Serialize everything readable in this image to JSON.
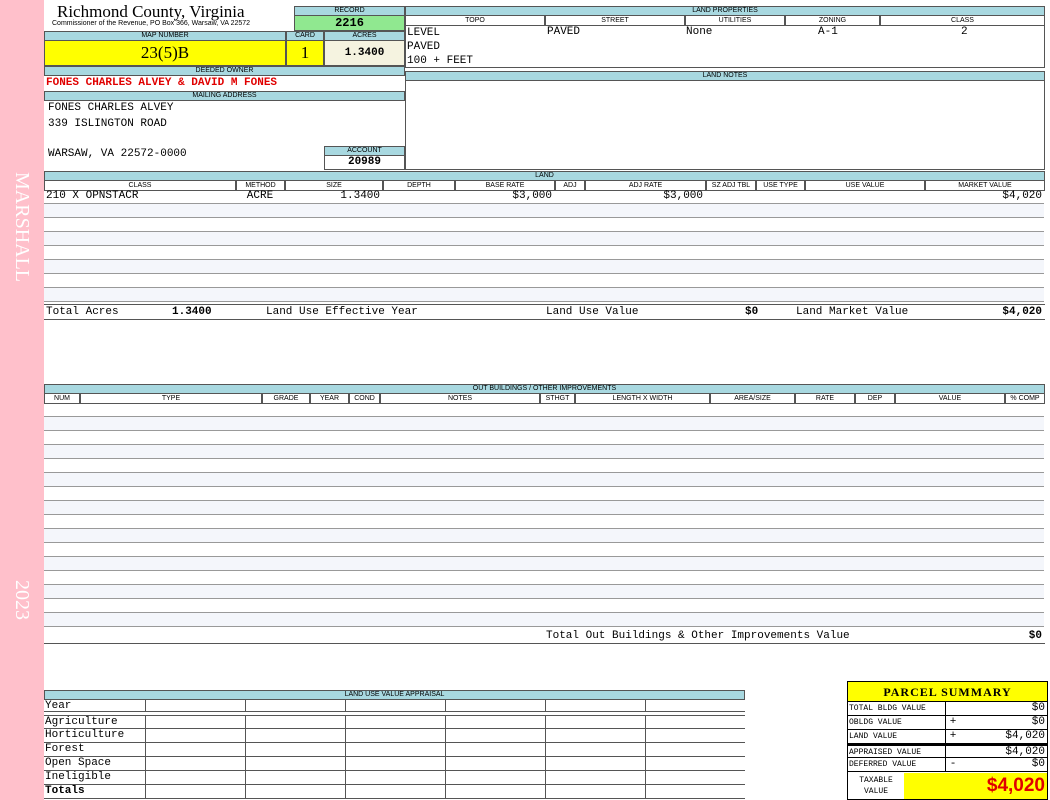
{
  "side": {
    "top": "MARSHALL",
    "bottom": "2023"
  },
  "header": {
    "county": "Richmond County, Virginia",
    "address": "Commissioner of the Revenue, PO Box 366, Warsaw, VA 22572",
    "record_label": "RECORD",
    "record": "2216",
    "map_label": "MAP NUMBER",
    "map": "23(5)B",
    "card_label": "CARD",
    "card": "1",
    "acres_label": "ACRES",
    "acres": "1.3400"
  },
  "owner": {
    "label": "DEEDED OWNER",
    "name": "FONES CHARLES ALVEY & DAVID M FONES",
    "mail_label": "MAILING ADDRESS",
    "lines": [
      "FONES CHARLES ALVEY",
      "339 ISLINGTON ROAD",
      "WARSAW, VA 22572-0000"
    ],
    "account_label": "ACCOUNT",
    "account": "20989"
  },
  "land_props": {
    "label": "LAND PROPERTIES",
    "cols": [
      "TOPO",
      "STREET",
      "UTILITIES",
      "ZONING",
      "CLASS"
    ],
    "topo": [
      "LEVEL",
      "PAVED",
      "100 + FEET"
    ],
    "street": "PAVED",
    "utilities": "None",
    "zoning": "A-1",
    "class": "2"
  },
  "land_notes": {
    "label": "LAND NOTES"
  },
  "land": {
    "label": "LAND",
    "cols": [
      "CLASS",
      "METHOD",
      "SIZE",
      "DEPTH",
      "BASE RATE",
      "ADJ",
      "ADJ RATE",
      "SZ ADJ TBL",
      "USE TYPE",
      "USE VALUE",
      "MARKET VALUE"
    ],
    "rows": [
      [
        "210 X OPNSTACR",
        "ACRE",
        "1.3400",
        "",
        "$3,000",
        "",
        "$3,000",
        "",
        "",
        "",
        "$4,020"
      ]
    ],
    "totals": {
      "acres_label": "Total Acres",
      "acres": "1.3400",
      "eff_label": "Land Use Effective Year",
      "use_label": "Land Use Value",
      "use": "$0",
      "market_label": "Land Market Value",
      "market": "$4,020"
    }
  },
  "outbuildings": {
    "label": "OUT BUILDINGS / OTHER IMPROVEMENTS",
    "cols": [
      "NUM",
      "TYPE",
      "GRADE",
      "YEAR",
      "COND",
      "NOTES",
      "STHGT",
      "LENGTH X WIDTH",
      "AREA/SIZE",
      "RATE",
      "DEP",
      "VALUE",
      "% COMP"
    ],
    "total_label": "Total Out Buildings & Other Improvements Value",
    "total": "$0"
  },
  "land_use": {
    "label": "LAND USE VALUE APPRAISAL",
    "rows": [
      "Year",
      "Agriculture",
      "Horticulture",
      "Forest",
      "Open Space",
      "Ineligible",
      "Totals"
    ]
  },
  "summary": {
    "title": "PARCEL SUMMARY",
    "rows": [
      {
        "label": "TOTAL BLDG VALUE",
        "op": "",
        "value": "$0"
      },
      {
        "label": "OBLDG VALUE",
        "op": "+",
        "value": "$0"
      },
      {
        "label": "LAND VALUE",
        "op": "+",
        "value": "$4,020"
      },
      {
        "label": "APPRAISED VALUE",
        "op": "",
        "value": "$4,020"
      },
      {
        "label": "DEFERRED VALUE",
        "op": "-",
        "value": "$0"
      }
    ],
    "taxable_label": "TAXABLE VALUE",
    "taxable": "$4,020"
  },
  "colors": {
    "side": "#ffc0cb",
    "header": "#a8d8e0",
    "yellow": "#ffff00",
    "green": "#90e890",
    "red": "#e00000"
  }
}
